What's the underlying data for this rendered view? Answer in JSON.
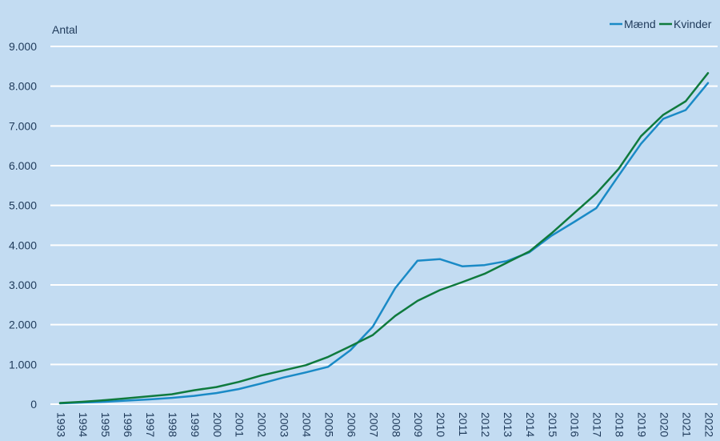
{
  "chart_data": {
    "type": "line",
    "ylabel": "Antal",
    "ylim": [
      0,
      9000
    ],
    "y_ticks": [
      0,
      1000,
      2000,
      3000,
      4000,
      5000,
      6000,
      7000,
      8000,
      9000
    ],
    "y_tick_labels": [
      "0",
      "1.000",
      "2.000",
      "3.000",
      "4.000",
      "5.000",
      "6.000",
      "7.000",
      "8.000",
      "9.000"
    ],
    "x": [
      "1993",
      "1994",
      "1995",
      "1996",
      "1997",
      "1998",
      "1999",
      "2000",
      "2001",
      "2002",
      "2003",
      "2004",
      "2005",
      "2006",
      "2007",
      "2008",
      "2009",
      "2010",
      "2011",
      "2012",
      "2013",
      "2014",
      "2015",
      "2016",
      "2017",
      "2018",
      "2019",
      "2020",
      "2021",
      "2022"
    ],
    "grid": true,
    "legend_position": "top-right",
    "series": [
      {
        "name": "Mænd",
        "color": "#1a8ac6",
        "values": [
          20,
          40,
          60,
          90,
          120,
          160,
          210,
          280,
          380,
          520,
          670,
          800,
          940,
          1360,
          1950,
          2920,
          3610,
          3650,
          3470,
          3500,
          3600,
          3820,
          4240,
          4580,
          4930,
          5750,
          6550,
          7180,
          7400,
          8080
        ]
      },
      {
        "name": "Kvinder",
        "color": "#0f7a3d",
        "values": [
          30,
          60,
          100,
          150,
          200,
          250,
          350,
          430,
          560,
          720,
          850,
          980,
          1190,
          1460,
          1740,
          2220,
          2600,
          2870,
          3070,
          3280,
          3560,
          3840,
          4300,
          4800,
          5300,
          5920,
          6740,
          7280,
          7620,
          8330
        ]
      }
    ]
  }
}
